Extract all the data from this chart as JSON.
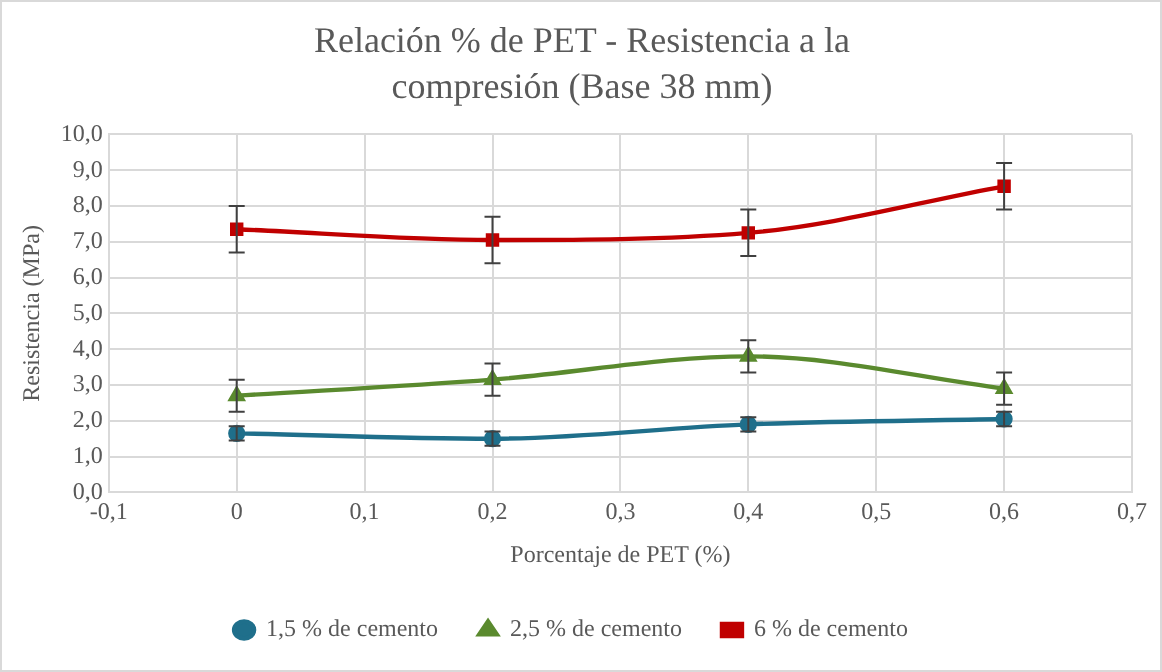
{
  "chart_data": {
    "type": "line",
    "title": "Relación % de PET - Resistencia a la compresión (Base 38 mm)",
    "xlabel": "Porcentaje de PET (%)",
    "ylabel": "Resistencia (MPa)",
    "x": [
      0,
      0.2,
      0.4,
      0.6
    ],
    "series": [
      {
        "name": "1,5 % de cemento",
        "color": "#1f6f8b",
        "marker": "circle",
        "values": [
          1.65,
          1.5,
          1.9,
          2.05
        ],
        "errors": [
          0.2,
          0.2,
          0.2,
          0.2
        ]
      },
      {
        "name": "2,5 % de cemento",
        "color": "#5a8a2e",
        "marker": "triangle",
        "values": [
          2.7,
          3.15,
          3.8,
          2.9
        ],
        "errors": [
          0.45,
          0.45,
          0.45,
          0.45
        ]
      },
      {
        "name": "6 % de cemento",
        "color": "#c00000",
        "marker": "square",
        "values": [
          7.35,
          7.05,
          7.25,
          8.55
        ],
        "errors": [
          0.65,
          0.65,
          0.65,
          0.65
        ]
      }
    ],
    "xlim": [
      -0.1,
      0.7
    ],
    "xticks": [
      {
        "value": -0.1,
        "label": "-0,1"
      },
      0,
      {
        "value": 0.1,
        "label": "0,1"
      },
      {
        "value": 0.2,
        "label": "0,2"
      },
      {
        "value": 0.3,
        "label": "0,3"
      },
      {
        "value": 0.4,
        "label": "0,4"
      },
      {
        "value": 0.5,
        "label": "0,5"
      },
      {
        "value": 0.6,
        "label": "0,6"
      },
      {
        "value": 0.7,
        "label": "0,7"
      }
    ],
    "ylim": [
      0,
      10
    ],
    "yticks": [
      {
        "value": 0,
        "label": "0,0"
      },
      {
        "value": 1,
        "label": "1,0"
      },
      {
        "value": 2,
        "label": "2,0"
      },
      {
        "value": 3,
        "label": "3,0"
      },
      {
        "value": 4,
        "label": "4,0"
      },
      {
        "value": 5,
        "label": "5,0"
      },
      {
        "value": 6,
        "label": "6,0"
      },
      {
        "value": 7,
        "label": "7,0"
      },
      {
        "value": 8,
        "label": "8,0"
      },
      {
        "value": 9,
        "label": "9,0"
      },
      {
        "value": 10,
        "label": "10,0"
      }
    ],
    "grid": true,
    "legend": "bottom",
    "line_style": "solid"
  }
}
